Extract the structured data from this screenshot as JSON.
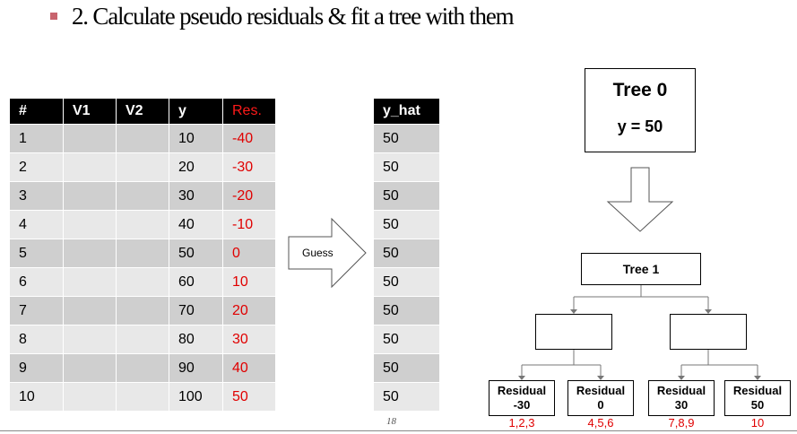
{
  "slide": {
    "title": "2. Calculate pseudo residuals & fit a tree with them",
    "page_number": "18"
  },
  "table": {
    "headers": [
      "#",
      "V1",
      "V2",
      "y",
      "Res."
    ],
    "rows": [
      {
        "n": "1",
        "v1": "",
        "v2": "",
        "y": "10",
        "res": "-40"
      },
      {
        "n": "2",
        "v1": "",
        "v2": "",
        "y": "20",
        "res": "-30"
      },
      {
        "n": "3",
        "v1": "",
        "v2": "",
        "y": "30",
        "res": "-20"
      },
      {
        "n": "4",
        "v1": "",
        "v2": "",
        "y": "40",
        "res": "-10"
      },
      {
        "n": "5",
        "v1": "",
        "v2": "",
        "y": "50",
        "res": "0"
      },
      {
        "n": "6",
        "v1": "",
        "v2": "",
        "y": "60",
        "res": "10"
      },
      {
        "n": "7",
        "v1": "",
        "v2": "",
        "y": "70",
        "res": "20"
      },
      {
        "n": "8",
        "v1": "",
        "v2": "",
        "y": "80",
        "res": "30"
      },
      {
        "n": "9",
        "v1": "",
        "v2": "",
        "y": "90",
        "res": "40"
      },
      {
        "n": "10",
        "v1": "",
        "v2": "",
        "y": "100",
        "res": "50"
      }
    ]
  },
  "guess_label": "Guess",
  "yhat": {
    "header": "y_hat",
    "values": [
      "50",
      "50",
      "50",
      "50",
      "50",
      "50",
      "50",
      "50",
      "50",
      "50"
    ]
  },
  "tree0": {
    "title": "Tree 0",
    "value": "y = 50"
  },
  "tree1": {
    "title": "Tree 1"
  },
  "leaves": [
    {
      "line1": "Residual",
      "line2": "-30",
      "indices": "1,2,3"
    },
    {
      "line1": "Residual",
      "line2": "0",
      "indices": "4,5,6"
    },
    {
      "line1": "Residual",
      "line2": "30",
      "indices": "7,8,9"
    },
    {
      "line1": "Residual",
      "line2": "50",
      "indices": "10"
    }
  ],
  "colors": {
    "residual_text": "#e00000",
    "header_bg": "#000000",
    "row_dark": "#cfcfcf",
    "row_light": "#e8e8e8",
    "bullet": "#c8646e"
  }
}
